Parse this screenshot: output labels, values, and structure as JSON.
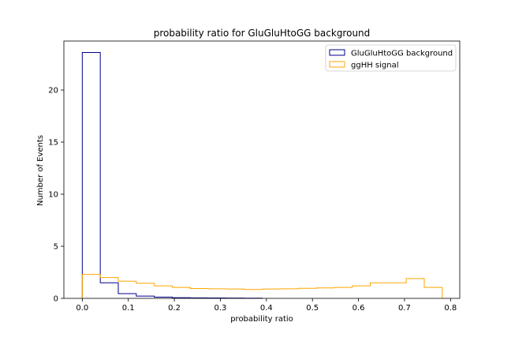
{
  "chart_data": {
    "type": "histogram",
    "title": "probability ratio for GluGluHtoGG background",
    "xlabel": "probability ratio",
    "ylabel": "Number of Events",
    "xlim": [
      -0.04,
      0.82
    ],
    "ylim": [
      0,
      24.7
    ],
    "xticks": [
      0.0,
      0.1,
      0.2,
      0.3,
      0.4,
      0.5,
      0.6,
      0.7,
      0.8
    ],
    "xtick_labels": [
      "0.0",
      "0.1",
      "0.2",
      "0.3",
      "0.4",
      "0.5",
      "0.6",
      "0.7",
      "0.8"
    ],
    "yticks": [
      0,
      5,
      10,
      15,
      20
    ],
    "ytick_labels": [
      "0",
      "5",
      "10",
      "15",
      "20"
    ],
    "grid": false,
    "legend_position": "top-right",
    "series": [
      {
        "name": "GluGluHtoGG background",
        "color": "#00008b",
        "edges": [
          0.0,
          0.0391,
          0.0782,
          0.1173,
          0.1564,
          0.1955,
          0.2346,
          0.2737,
          0.3128,
          0.3519,
          0.391
        ],
        "values": [
          23.6,
          1.5,
          0.45,
          0.22,
          0.12,
          0.07,
          0.05,
          0.04,
          0.03,
          0.02
        ]
      },
      {
        "name": "ggHH signal",
        "color": "#ffa500",
        "edges": [
          0.0,
          0.0391,
          0.0782,
          0.1173,
          0.1564,
          0.1955,
          0.2346,
          0.2737,
          0.3128,
          0.3519,
          0.391,
          0.4301,
          0.4692,
          0.5083,
          0.5474,
          0.5865,
          0.6256,
          0.6647,
          0.7038,
          0.7429,
          0.782
        ],
        "values": [
          2.3,
          2.0,
          1.65,
          1.45,
          1.2,
          1.05,
          0.95,
          0.92,
          0.9,
          0.85,
          0.9,
          0.92,
          0.97,
          1.0,
          1.05,
          1.2,
          1.5,
          1.5,
          1.9,
          1.05
        ]
      }
    ]
  }
}
